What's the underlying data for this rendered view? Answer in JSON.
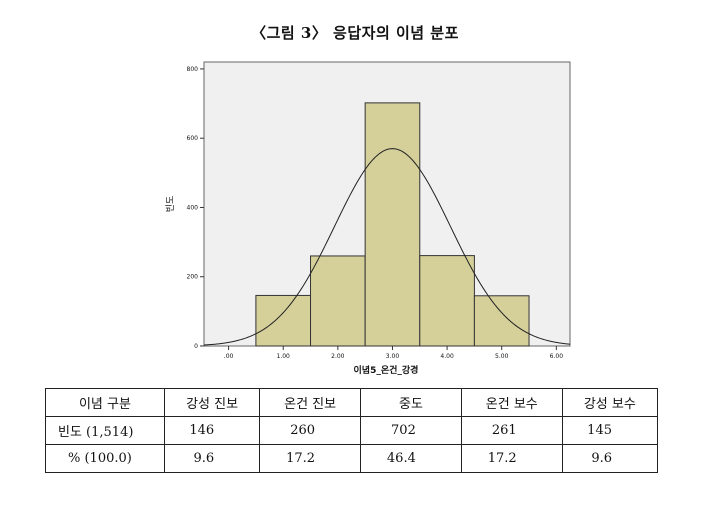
{
  "title": "〈그림 3〉 응답자의 이념 분포",
  "chart_data": {
    "type": "bar",
    "subtype": "histogram-with-normal-curve",
    "xlabel": "이념5_온건_강경",
    "ylabel": "빈도",
    "x_ticks": [
      ".00",
      "1.00",
      "2.00",
      "3.00",
      "4.00",
      "5.00",
      "6.00"
    ],
    "x_tick_values": [
      0,
      1,
      2,
      3,
      4,
      5,
      6
    ],
    "y_ticks": [
      "0",
      "200",
      "400",
      "600",
      "800"
    ],
    "y_tick_values": [
      0,
      200,
      400,
      600,
      800
    ],
    "xlim": [
      -0.45,
      6.25
    ],
    "ylim": [
      0,
      820
    ],
    "bins": [
      {
        "from": 0.5,
        "to": 1.5,
        "value": 146
      },
      {
        "from": 1.5,
        "to": 2.5,
        "value": 260
      },
      {
        "from": 2.5,
        "to": 3.5,
        "value": 702
      },
      {
        "from": 3.5,
        "to": 4.5,
        "value": 261
      },
      {
        "from": 4.5,
        "to": 5.5,
        "value": 145
      }
    ],
    "normal_curve": {
      "mean": 3.0,
      "sd": 1.06,
      "n": 1514,
      "bin_width": 1
    },
    "bar_color": "#d5cf9a",
    "plot_bg": "#f0f0f0",
    "grid": false,
    "legend": "none"
  },
  "table": {
    "header": [
      "이념 구분",
      "강성 진보",
      "온건 진보",
      "중도",
      "온건 보수",
      "강성 보수"
    ],
    "rows": [
      [
        "빈도 (1,514)",
        "146",
        "260",
        "702",
        "261",
        "145"
      ],
      [
        "% (100.0)",
        "9.6",
        "17.2",
        "46.4",
        "17.2",
        "9.6"
      ]
    ]
  }
}
